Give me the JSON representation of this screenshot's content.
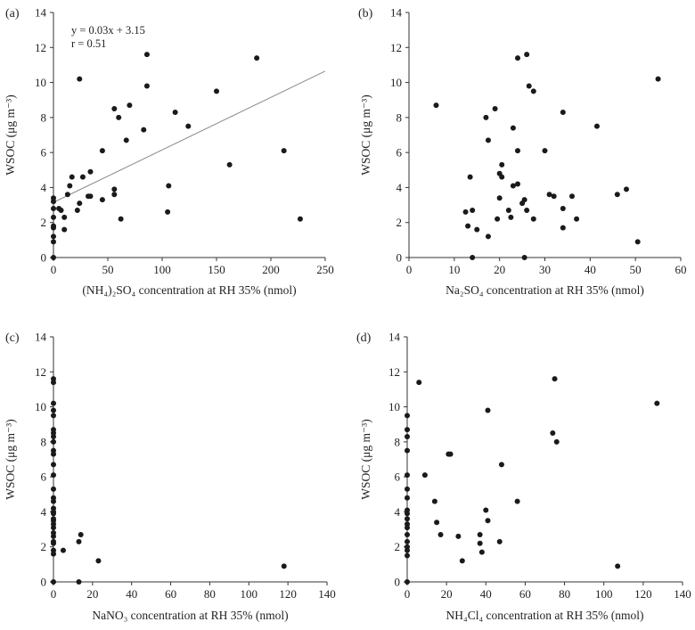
{
  "chart_data": [
    {
      "type": "scatter",
      "panel_label": "(a)",
      "ylabel": "WSOC (μg m⁻³)",
      "xlabel": "(NH₄)₂SO₄ concentration at RH 35% (nmol)",
      "xlim": [
        0,
        250
      ],
      "ylim": [
        0,
        14
      ],
      "xticks": [
        0,
        50,
        100,
        150,
        200,
        250
      ],
      "yticks": [
        0,
        2,
        4,
        6,
        8,
        10,
        12,
        14
      ],
      "fit_line": {
        "slope": 0.03,
        "intercept": 3.15
      },
      "annotations": [
        "y = 0.03x + 3.15",
        "r = 0.51"
      ],
      "points": [
        [
          0,
          0
        ],
        [
          0,
          0.9
        ],
        [
          0,
          1.2
        ],
        [
          0,
          1.7
        ],
        [
          0,
          1.8
        ],
        [
          0,
          2.3
        ],
        [
          0,
          2.8
        ],
        [
          0,
          3.2
        ],
        [
          0,
          3.4
        ],
        [
          5,
          2.8
        ],
        [
          7,
          2.7
        ],
        [
          10,
          2.3
        ],
        [
          10,
          1.6
        ],
        [
          13,
          3.6
        ],
        [
          15,
          4.1
        ],
        [
          17,
          4.6
        ],
        [
          22,
          2.7
        ],
        [
          24,
          3.1
        ],
        [
          24,
          10.2
        ],
        [
          27,
          4.6
        ],
        [
          32,
          3.5
        ],
        [
          34,
          3.5
        ],
        [
          34,
          4.9
        ],
        [
          45,
          3.3
        ],
        [
          45,
          6.1
        ],
        [
          56,
          3.6
        ],
        [
          56,
          3.9
        ],
        [
          56,
          8.5
        ],
        [
          60,
          8.0
        ],
        [
          62,
          2.2
        ],
        [
          67,
          6.7
        ],
        [
          70,
          8.7
        ],
        [
          83,
          7.3
        ],
        [
          86,
          11.6
        ],
        [
          86,
          9.8
        ],
        [
          105,
          2.6
        ],
        [
          106,
          4.1
        ],
        [
          112,
          8.3
        ],
        [
          124,
          7.5
        ],
        [
          150,
          9.5
        ],
        [
          162,
          5.3
        ],
        [
          187,
          11.4
        ],
        [
          212,
          6.1
        ],
        [
          227,
          2.2
        ]
      ]
    },
    {
      "type": "scatter",
      "panel_label": "(b)",
      "ylabel": "WSOC (μg m⁻³)",
      "xlabel": "Na₂SO₄ concentration at RH 35% (nmol)",
      "xlim": [
        0,
        60
      ],
      "ylim": [
        0,
        14
      ],
      "xticks": [
        0,
        10,
        20,
        30,
        40,
        50,
        60
      ],
      "yticks": [
        0,
        2,
        4,
        6,
        8,
        10,
        12,
        14
      ],
      "points": [
        [
          6,
          8.7
        ],
        [
          12.5,
          2.6
        ],
        [
          13,
          1.8
        ],
        [
          13.5,
          4.6
        ],
        [
          14,
          0
        ],
        [
          14,
          2.7
        ],
        [
          15,
          1.6
        ],
        [
          17,
          8.0
        ],
        [
          17.5,
          6.7
        ],
        [
          17.5,
          1.2
        ],
        [
          19,
          8.5
        ],
        [
          19.5,
          2.2
        ],
        [
          20,
          3.4
        ],
        [
          20,
          4.8
        ],
        [
          20.5,
          5.3
        ],
        [
          20.5,
          4.6
        ],
        [
          22,
          2.7
        ],
        [
          22.5,
          2.3
        ],
        [
          23,
          7.4
        ],
        [
          23,
          4.1
        ],
        [
          24,
          6.1
        ],
        [
          24,
          11.4
        ],
        [
          24,
          4.2
        ],
        [
          25,
          3.1
        ],
        [
          25.5,
          3.3
        ],
        [
          25.5,
          0
        ],
        [
          26,
          11.6
        ],
        [
          26,
          2.7
        ],
        [
          26.5,
          9.8
        ],
        [
          27.5,
          9.5
        ],
        [
          27.5,
          2.2
        ],
        [
          30,
          6.1
        ],
        [
          31,
          3.6
        ],
        [
          32,
          3.5
        ],
        [
          34,
          8.3
        ],
        [
          34,
          2.8
        ],
        [
          34,
          1.7
        ],
        [
          36,
          3.5
        ],
        [
          37,
          2.2
        ],
        [
          41.5,
          7.5
        ],
        [
          46,
          3.6
        ],
        [
          48,
          3.9
        ],
        [
          50.5,
          0.9
        ],
        [
          55,
          10.2
        ]
      ]
    },
    {
      "type": "scatter",
      "panel_label": "(c)",
      "ylabel": "WSOC (μg m⁻³)",
      "xlabel": "NaNO₃ concentration at RH 35% (nmol)",
      "xlim": [
        0,
        140
      ],
      "ylim": [
        0,
        14
      ],
      "xticks": [
        0,
        20,
        40,
        60,
        80,
        100,
        120,
        140
      ],
      "yticks": [
        0,
        2,
        4,
        6,
        8,
        10,
        12,
        14
      ],
      "points": [
        [
          0,
          11.6
        ],
        [
          0,
          11.4
        ],
        [
          0,
          10.2
        ],
        [
          0,
          9.8
        ],
        [
          0,
          9.5
        ],
        [
          0,
          8.7
        ],
        [
          0,
          8.5
        ],
        [
          0,
          8.3
        ],
        [
          0,
          8.0
        ],
        [
          0,
          7.5
        ],
        [
          0,
          7.3
        ],
        [
          0,
          6.7
        ],
        [
          0,
          6.1
        ],
        [
          0,
          5.3
        ],
        [
          0,
          4.8
        ],
        [
          0,
          4.6
        ],
        [
          0,
          4.2
        ],
        [
          0,
          4.0
        ],
        [
          0,
          3.9
        ],
        [
          0,
          3.6
        ],
        [
          0,
          3.5
        ],
        [
          0,
          3.3
        ],
        [
          0,
          3.1
        ],
        [
          0,
          2.8
        ],
        [
          0,
          2.6
        ],
        [
          0,
          2.3
        ],
        [
          0,
          2.2
        ],
        [
          0,
          1.8
        ],
        [
          0,
          1.6
        ],
        [
          0,
          0
        ],
        [
          5,
          1.8
        ],
        [
          13,
          0
        ],
        [
          13,
          2.3
        ],
        [
          14,
          2.7
        ],
        [
          23,
          1.2
        ],
        [
          118,
          0.9
        ]
      ]
    },
    {
      "type": "scatter",
      "panel_label": "(d)",
      "ylabel": "WSOC (μg m⁻³)",
      "xlabel": "NH₄Cl₄ concentration at RH 35% (nmol)",
      "xlim": [
        0,
        140
      ],
      "ylim": [
        0,
        14
      ],
      "xticks": [
        0,
        20,
        40,
        60,
        80,
        100,
        120,
        140
      ],
      "yticks": [
        0,
        2,
        4,
        6,
        8,
        10,
        12,
        14
      ],
      "points": [
        [
          0,
          9.5
        ],
        [
          0,
          8.7
        ],
        [
          0,
          8.3
        ],
        [
          0,
          7.5
        ],
        [
          0,
          6.1
        ],
        [
          0,
          5.3
        ],
        [
          0,
          4.8
        ],
        [
          0,
          4.1
        ],
        [
          0,
          3.9
        ],
        [
          0,
          3.6
        ],
        [
          0,
          3.3
        ],
        [
          0,
          3.1
        ],
        [
          0,
          2.7
        ],
        [
          0,
          2.3
        ],
        [
          0,
          2.0
        ],
        [
          0,
          1.8
        ],
        [
          0,
          1.5
        ],
        [
          0,
          0
        ],
        [
          6,
          11.4
        ],
        [
          9,
          6.1
        ],
        [
          14,
          4.6
        ],
        [
          15,
          3.4
        ],
        [
          17,
          2.7
        ],
        [
          21,
          7.3
        ],
        [
          22,
          7.3
        ],
        [
          26,
          2.6
        ],
        [
          28,
          1.2
        ],
        [
          37,
          2.2
        ],
        [
          37,
          2.7
        ],
        [
          38,
          1.7
        ],
        [
          40,
          4.1
        ],
        [
          41,
          9.8
        ],
        [
          41,
          3.5
        ],
        [
          47,
          2.3
        ],
        [
          48,
          6.7
        ],
        [
          56,
          4.6
        ],
        [
          74,
          8.5
        ],
        [
          75,
          11.6
        ],
        [
          76,
          8.0
        ],
        [
          107,
          0.9
        ],
        [
          127,
          10.2
        ]
      ]
    }
  ]
}
